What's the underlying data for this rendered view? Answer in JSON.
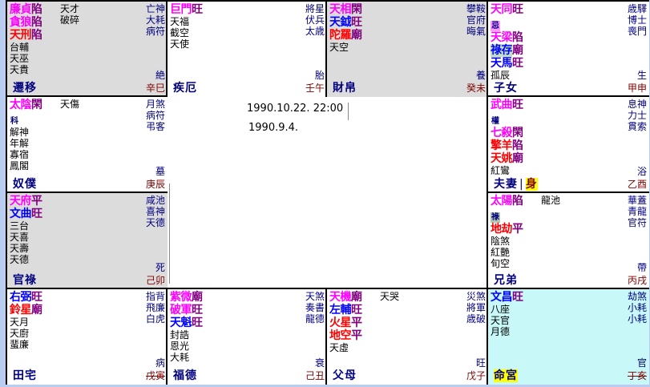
{
  "colors": {
    "m": "#ff00ff",
    "b": "#0000ff",
    "r": "#ff0000",
    "brightness": "#800080",
    "palace": "#000080",
    "ganzhi": "#800000"
  },
  "center": {
    "solar_datetime": "1990.10.22. 22:00",
    "lunar_date": "1990.9.4."
  },
  "cells": [
    {
      "palace": "遷移",
      "ganzhi": "辛巳",
      "stage": "絶",
      "bg": "gray",
      "stars": [
        {
          "t": "廉貞",
          "b": "陷",
          "c": "m"
        },
        {
          "t": "貪狼",
          "b": "陷",
          "c": "m"
        },
        {
          "t": "天刑",
          "b": "陷",
          "c": "r"
        }
      ],
      "minor": [
        "台輔",
        "天巫",
        "天貴"
      ],
      "col2": [
        "天才",
        "破碎"
      ],
      "right": [
        "亡神",
        "大耗",
        "病符"
      ]
    },
    {
      "palace": "疾厄",
      "ganzhi": "壬午",
      "stage": "胎",
      "bg": "white",
      "stars": [
        {
          "t": "巨門",
          "b": "旺",
          "c": "m"
        }
      ],
      "minor": [
        "天福",
        "截空",
        "天使"
      ],
      "col2": [],
      "right": [
        "將星",
        "伏兵",
        "太歳"
      ]
    },
    {
      "palace": "財帛",
      "ganzhi": "癸未",
      "stage": "養",
      "bg": "gray",
      "stars": [
        {
          "t": "天相",
          "b": "閑",
          "c": "m"
        },
        {
          "t": "天鉞",
          "b": "旺",
          "c": "b"
        },
        {
          "t": "陀羅",
          "b": "廟",
          "c": "r"
        }
      ],
      "minor": [
        "天空"
      ],
      "col2": [],
      "right": [
        "攀鞍",
        "官府",
        "晦氣"
      ]
    },
    {
      "palace": "子女",
      "ganzhi": "甲申",
      "stage": "生",
      "bg": "white",
      "stars": [
        {
          "t": "天同",
          "b": "旺",
          "c": "m",
          "hua": "忌",
          "hbg": "#ff99ff"
        },
        {
          "t": "天梁",
          "b": "陷",
          "c": "m"
        },
        {
          "t": "祿存",
          "b": "廟",
          "c": "b",
          "nbg": "#c0e0c0"
        },
        {
          "t": "天馬",
          "b": "旺",
          "c": "b"
        }
      ],
      "minor": [
        "孤辰"
      ],
      "col2": [],
      "right": [
        "歳驛",
        "博士",
        "喪門"
      ]
    },
    {
      "palace": "奴僕",
      "ganzhi": "庚辰",
      "stage": "墓",
      "bg": "white",
      "stars": [
        {
          "t": "太陰",
          "b": "閑",
          "c": "m",
          "hua": "科"
        }
      ],
      "minor": [
        "解神",
        "年解",
        "寡宿",
        "鳳閣"
      ],
      "col2": [
        "天傷"
      ],
      "right": [
        "月煞",
        "病符",
        "弔客"
      ]
    },
    {
      "palace": "夫妻",
      "ganzhi": "乙酉",
      "stage": "浴",
      "bg": "white",
      "shen": "身",
      "stars": [
        {
          "t": "武曲",
          "b": "旺",
          "c": "m",
          "hua": "權"
        },
        {
          "t": "七殺",
          "b": "閑",
          "c": "m"
        },
        {
          "t": "擎羊",
          "b": "陷",
          "c": "r"
        },
        {
          "t": "天姚",
          "b": "廟",
          "c": "r"
        }
      ],
      "minor": [
        "紅鸞"
      ],
      "col2": [],
      "right": [
        "息神",
        "力士",
        "貫索"
      ]
    },
    {
      "palace": "官祿",
      "ganzhi": "己卯",
      "stage": "死",
      "bg": "gray",
      "stars": [
        {
          "t": "天府",
          "b": "平",
          "c": "m"
        },
        {
          "t": "文曲",
          "b": "旺",
          "c": "b"
        }
      ],
      "minor": [
        "三台",
        "天喜",
        "天壽",
        "天德"
      ],
      "col2": [],
      "right": [
        "咸池",
        "喜神",
        "天德"
      ]
    },
    {
      "palace": "兄弟",
      "ganzhi": "丙戌",
      "stage": "帶",
      "bg": "white",
      "stars": [
        {
          "t": "太陽",
          "b": "陷",
          "c": "m",
          "hua": "祿",
          "hbg": "#b0c8b0"
        },
        {
          "t": "地劫",
          "b": "平",
          "c": "r"
        }
      ],
      "minor": [
        "陰煞",
        "紅艷",
        "旬空"
      ],
      "col2": [
        "龍池"
      ],
      "right": [
        "華蓋",
        "青龍",
        "官符"
      ]
    },
    {
      "palace": "田宅",
      "ganzhi": "戊寅",
      "strike": true,
      "stage": "病",
      "bg": "white",
      "stars": [
        {
          "t": "右弼",
          "b": "旺",
          "c": "b"
        },
        {
          "t": "鈴星",
          "b": "廟",
          "c": "r"
        }
      ],
      "minor": [
        "天月",
        "天廚",
        "蜚廉"
      ],
      "col2": [],
      "right": [
        "指背",
        "飛廉",
        "白虎"
      ]
    },
    {
      "palace": "福德",
      "ganzhi": "己丑",
      "stage": "衰",
      "bg": "white",
      "stars": [
        {
          "t": "紫微",
          "b": "廟",
          "c": "m"
        },
        {
          "t": "破軍",
          "b": "旺",
          "c": "m"
        },
        {
          "t": "天魁",
          "b": "旺",
          "c": "b"
        }
      ],
      "minor": [
        "封誥",
        "恩光",
        "大耗"
      ],
      "col2": [],
      "right": [
        "天煞",
        "奏書",
        "龍德"
      ]
    },
    {
      "palace": "父母",
      "ganzhi": "戊子",
      "stage": "旺",
      "bg": "white",
      "stars": [
        {
          "t": "天機",
          "b": "廟",
          "c": "m"
        },
        {
          "t": "左輔",
          "b": "旺",
          "c": "b"
        },
        {
          "t": "火星",
          "b": "平",
          "c": "r"
        },
        {
          "t": "地空",
          "b": "平",
          "c": "r"
        }
      ],
      "minor": [
        "天虛"
      ],
      "col2": [
        "天哭"
      ],
      "right": [
        "災煞",
        "將軍",
        "歳破"
      ]
    },
    {
      "palace": "命宮",
      "ganzhi": "丁亥",
      "strike": true,
      "stage": "官",
      "bg": "cyan",
      "highlight": true,
      "stars": [
        {
          "t": "文昌",
          "b": "旺",
          "c": "b"
        }
      ],
      "minor": [
        "八座",
        "天官",
        "月德"
      ],
      "col2": [],
      "right": [
        "劫煞",
        "小耗",
        "小耗"
      ]
    }
  ]
}
